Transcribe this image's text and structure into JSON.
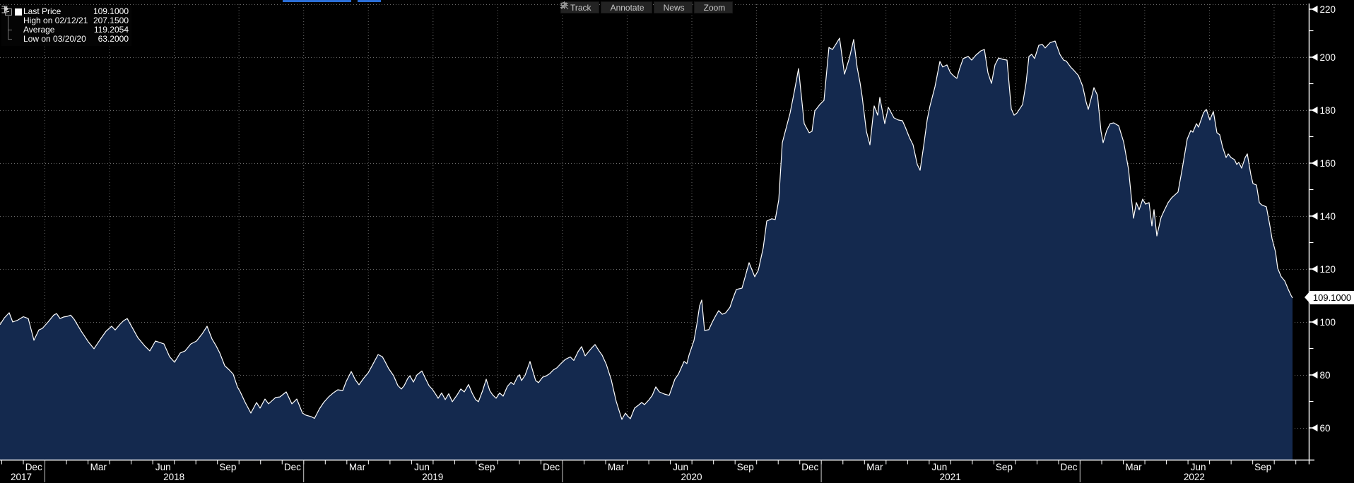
{
  "toolbar": {
    "buttons": [
      {
        "icon": "track-crosshair-icon",
        "label": "Track"
      },
      {
        "icon": "annotate-pencil-icon",
        "label": "Annotate"
      },
      {
        "icon": "news-lines-icon",
        "label": "News"
      },
      {
        "icon": "zoom-magnifier-icon",
        "label": "Zoom"
      }
    ]
  },
  "legend": {
    "rows": [
      {
        "icon": "series-swatch",
        "label": "Last Price",
        "value": "109.1000"
      },
      {
        "icon": "high-marker-icon",
        "label": "High on 02/12/21",
        "value": "207.1500"
      },
      {
        "icon": "average-marker-icon",
        "label": "Average",
        "value": "119.2054"
      },
      {
        "icon": "low-marker-icon",
        "label": "Low on 03/20/20",
        "value": "63.2000"
      }
    ]
  },
  "price_tag": {
    "value": "109.1000"
  },
  "colors": {
    "background": "#000000",
    "area_fill": "#14294e",
    "line": "#ffffff",
    "grid": "#6a6a6a",
    "year_separator": "#c8c8c8",
    "accent_blue": "#2b6fd8",
    "axis_text": "#ffffff",
    "toolbar_text": "#c6c6c6"
  },
  "chart_data": {
    "type": "area",
    "title": "",
    "xlabel": "",
    "ylabel": "",
    "x_axis": {
      "note": "weekly closes, Nov 2017 - Oct 2022; x stored as pixel offset in plot (0-1830)",
      "month_labels": [
        "Dec",
        "Mar",
        "Jun",
        "Sep",
        "Dec",
        "Mar",
        "Jun",
        "Sep",
        "Dec",
        "Mar",
        "Jun",
        "Sep",
        "Dec",
        "Mar",
        "Jun",
        "Sep",
        "Dec",
        "Mar",
        "Jun",
        "Sep"
      ],
      "year_labels": [
        "2017",
        "2018",
        "2019",
        "2020",
        "2021",
        "2022"
      ]
    },
    "y_axis": {
      "ticks": [
        220,
        200,
        180,
        160,
        140,
        120,
        100,
        80,
        60
      ],
      "range_visible": [
        60,
        220
      ],
      "grid": true
    },
    "legend_position": "top-left",
    "key_points": {
      "last": 109.1,
      "high": {
        "date": "02/12/21",
        "value": 207.15
      },
      "average": 119.2054,
      "low": {
        "date": "03/20/20",
        "value": 63.2
      }
    },
    "points": [
      [
        0,
        99
      ],
      [
        6,
        101.5
      ],
      [
        13,
        103.5
      ],
      [
        18,
        100
      ],
      [
        25,
        100.7
      ],
      [
        33,
        102
      ],
      [
        40,
        101.3
      ],
      [
        48,
        93.1
      ],
      [
        55,
        97
      ],
      [
        60,
        97.6
      ],
      [
        68,
        100
      ],
      [
        76,
        102.6
      ],
      [
        80,
        103.2
      ],
      [
        85,
        101.3
      ],
      [
        90,
        101.9
      ],
      [
        95,
        102.1
      ],
      [
        100,
        102.6
      ],
      [
        105,
        101
      ],
      [
        115,
        96.5
      ],
      [
        125,
        92.5
      ],
      [
        133,
        89.9
      ],
      [
        142,
        93.5
      ],
      [
        150,
        96.5
      ],
      [
        158,
        98.4
      ],
      [
        163,
        97
      ],
      [
        170,
        99.2
      ],
      [
        175,
        100.5
      ],
      [
        180,
        101.3
      ],
      [
        188,
        97.5
      ],
      [
        195,
        94.1
      ],
      [
        205,
        90.9
      ],
      [
        212,
        89.1
      ],
      [
        220,
        92.8
      ],
      [
        226,
        92.3
      ],
      [
        232,
        91.7
      ],
      [
        240,
        86.9
      ],
      [
        247,
        84.8
      ],
      [
        255,
        88.3
      ],
      [
        262,
        89.1
      ],
      [
        270,
        91.7
      ],
      [
        278,
        92.8
      ],
      [
        286,
        95.5
      ],
      [
        293,
        98.4
      ],
      [
        300,
        93.6
      ],
      [
        306,
        90.9
      ],
      [
        311,
        88.3
      ],
      [
        318,
        83.5
      ],
      [
        324,
        82
      ],
      [
        330,
        80.3
      ],
      [
        336,
        75.5
      ],
      [
        340,
        73.6
      ],
      [
        347,
        69.6
      ],
      [
        355,
        65.6
      ],
      [
        363,
        69.6
      ],
      [
        368,
        67.5
      ],
      [
        375,
        70.9
      ],
      [
        380,
        69.1
      ],
      [
        390,
        71.5
      ],
      [
        396,
        71.7
      ],
      [
        405,
        73.6
      ],
      [
        413,
        69.1
      ],
      [
        420,
        70.9
      ],
      [
        428,
        65.6
      ],
      [
        433,
        64.8
      ],
      [
        440,
        64.3
      ],
      [
        445,
        63.6
      ],
      [
        452,
        67.2
      ],
      [
        458,
        69.6
      ],
      [
        465,
        71.7
      ],
      [
        472,
        73.3
      ],
      [
        478,
        74.4
      ],
      [
        485,
        74.1
      ],
      [
        490,
        77.6
      ],
      [
        497,
        81.3
      ],
      [
        503,
        78.1
      ],
      [
        508,
        76.3
      ],
      [
        515,
        78.9
      ],
      [
        521,
        80.8
      ],
      [
        527,
        83.7
      ],
      [
        535,
        87.7
      ],
      [
        541,
        86.9
      ],
      [
        545,
        85
      ],
      [
        550,
        82.4
      ],
      [
        557,
        79.7
      ],
      [
        563,
        76
      ],
      [
        568,
        74.7
      ],
      [
        572,
        76
      ],
      [
        577,
        78.7
      ],
      [
        580,
        79.7
      ],
      [
        585,
        77.3
      ],
      [
        590,
        80
      ],
      [
        597,
        81.5
      ],
      [
        602,
        78.7
      ],
      [
        607,
        76
      ],
      [
        612,
        74.5
      ],
      [
        617,
        72.5
      ],
      [
        620,
        71.2
      ],
      [
        625,
        73.2
      ],
      [
        630,
        70.7
      ],
      [
        635,
        72.9
      ],
      [
        640,
        69.9
      ],
      [
        647,
        72.5
      ],
      [
        652,
        74.7
      ],
      [
        657,
        73.6
      ],
      [
        663,
        76.4
      ],
      [
        668,
        73.2
      ],
      [
        673,
        70.7
      ],
      [
        677,
        69.9
      ],
      [
        683,
        74.1
      ],
      [
        688,
        78.4
      ],
      [
        693,
        74.1
      ],
      [
        697,
        72.5
      ],
      [
        702,
        71.2
      ],
      [
        707,
        73.2
      ],
      [
        712,
        72
      ],
      [
        718,
        75.7
      ],
      [
        723,
        77.2
      ],
      [
        727,
        76.4
      ],
      [
        732,
        79.2
      ],
      [
        735,
        80.1
      ],
      [
        738,
        77.9
      ],
      [
        743,
        79.9
      ],
      [
        750,
        85.1
      ],
      [
        755,
        80.5
      ],
      [
        758,
        77.9
      ],
      [
        762,
        77.1
      ],
      [
        768,
        79.2
      ],
      [
        772,
        79.5
      ],
      [
        778,
        80.5
      ],
      [
        783,
        81.9
      ],
      [
        788,
        82.7
      ],
      [
        793,
        84.1
      ],
      [
        800,
        85.9
      ],
      [
        807,
        86.8
      ],
      [
        812,
        85.5
      ],
      [
        818,
        88.8
      ],
      [
        823,
        90.7
      ],
      [
        828,
        87.2
      ],
      [
        837,
        90.1
      ],
      [
        842,
        91.5
      ],
      [
        848,
        89
      ],
      [
        852,
        87.5
      ],
      [
        858,
        84
      ],
      [
        865,
        78.1
      ],
      [
        872,
        70
      ],
      [
        880,
        63.2
      ],
      [
        885,
        65.6
      ],
      [
        888,
        64.5
      ],
      [
        892,
        63.5
      ],
      [
        898,
        67.5
      ],
      [
        903,
        68.5
      ],
      [
        908,
        69.6
      ],
      [
        912,
        68.8
      ],
      [
        918,
        70.5
      ],
      [
        923,
        72.3
      ],
      [
        928,
        75.5
      ],
      [
        933,
        73.6
      ],
      [
        940,
        72.8
      ],
      [
        947,
        72.3
      ],
      [
        955,
        78.4
      ],
      [
        960,
        80.3
      ],
      [
        968,
        85.1
      ],
      [
        972,
        84.3
      ],
      [
        975,
        87.5
      ],
      [
        982,
        93
      ],
      [
        986,
        99
      ],
      [
        990,
        106.1
      ],
      [
        993,
        108.3
      ],
      [
        997,
        96.8
      ],
      [
        1003,
        97.1
      ],
      [
        1008,
        100
      ],
      [
        1013,
        102.5
      ],
      [
        1017,
        104.3
      ],
      [
        1022,
        102.9
      ],
      [
        1027,
        103.5
      ],
      [
        1033,
        105.6
      ],
      [
        1037,
        108.8
      ],
      [
        1042,
        112.3
      ],
      [
        1050,
        112.8
      ],
      [
        1060,
        122.4
      ],
      [
        1068,
        117.1
      ],
      [
        1073,
        119.5
      ],
      [
        1080,
        128
      ],
      [
        1085,
        138.1
      ],
      [
        1092,
        139
      ],
      [
        1097,
        138.7
      ],
      [
        1102,
        146.1
      ],
      [
        1107,
        167.7
      ],
      [
        1112,
        172.8
      ],
      [
        1118,
        178.9
      ],
      [
        1124,
        187
      ],
      [
        1130,
        195.7
      ],
      [
        1138,
        174.9
      ],
      [
        1145,
        171.5
      ],
      [
        1149,
        172
      ],
      [
        1153,
        179.7
      ],
      [
        1160,
        182.1
      ],
      [
        1166,
        183.7
      ],
      [
        1173,
        203.7
      ],
      [
        1178,
        202.9
      ],
      [
        1183,
        205
      ],
      [
        1188,
        207.2
      ],
      [
        1195,
        193.6
      ],
      [
        1202,
        199.7
      ],
      [
        1208,
        206.7
      ],
      [
        1213,
        196
      ],
      [
        1217,
        190.4
      ],
      [
        1220,
        185.1
      ],
      [
        1226,
        172
      ],
      [
        1231,
        166.9
      ],
      [
        1237,
        181.6
      ],
      [
        1242,
        178.1
      ],
      [
        1245,
        184.8
      ],
      [
        1252,
        174.9
      ],
      [
        1257,
        181.1
      ],
      [
        1265,
        177.1
      ],
      [
        1271,
        176.3
      ],
      [
        1277,
        176
      ],
      [
        1281,
        173.6
      ],
      [
        1287,
        169.6
      ],
      [
        1292,
        166.9
      ],
      [
        1298,
        159.5
      ],
      [
        1302,
        157.3
      ],
      [
        1307,
        166.4
      ],
      [
        1312,
        176.3
      ],
      [
        1316,
        181.6
      ],
      [
        1323,
        188.8
      ],
      [
        1330,
        198.4
      ],
      [
        1334,
        196.3
      ],
      [
        1340,
        197.1
      ],
      [
        1345,
        194.1
      ],
      [
        1350,
        192.8
      ],
      [
        1354,
        192
      ],
      [
        1358,
        195.7
      ],
      [
        1363,
        199.5
      ],
      [
        1370,
        200.3
      ],
      [
        1375,
        198.9
      ],
      [
        1381,
        200.8
      ],
      [
        1388,
        202.4
      ],
      [
        1393,
        202.9
      ],
      [
        1398,
        194.1
      ],
      [
        1403,
        190.1
      ],
      [
        1408,
        197.1
      ],
      [
        1413,
        199.7
      ],
      [
        1419,
        199.2
      ],
      [
        1425,
        198.9
      ],
      [
        1431,
        180.5
      ],
      [
        1435,
        178.1
      ],
      [
        1439,
        178.9
      ],
      [
        1447,
        182.1
      ],
      [
        1452,
        190.4
      ],
      [
        1456,
        200.3
      ],
      [
        1460,
        201.1
      ],
      [
        1464,
        199.5
      ],
      [
        1470,
        204.5
      ],
      [
        1475,
        204.8
      ],
      [
        1479,
        203.5
      ],
      [
        1486,
        205.5
      ],
      [
        1493,
        206.1
      ],
      [
        1500,
        201
      ],
      [
        1505,
        198.9
      ],
      [
        1509,
        198.5
      ],
      [
        1515,
        196.3
      ],
      [
        1520,
        194.9
      ],
      [
        1526,
        193.1
      ],
      [
        1532,
        189.1
      ],
      [
        1537,
        183
      ],
      [
        1540,
        180.3
      ],
      [
        1548,
        188.5
      ],
      [
        1553,
        185.6
      ],
      [
        1558,
        172
      ],
      [
        1561,
        167.7
      ],
      [
        1566,
        172.3
      ],
      [
        1571,
        174.9
      ],
      [
        1576,
        175.2
      ],
      [
        1583,
        174.1
      ],
      [
        1590,
        168
      ],
      [
        1597,
        157.6
      ],
      [
        1601,
        146.9
      ],
      [
        1604,
        139.2
      ],
      [
        1608,
        145.1
      ],
      [
        1612,
        142.4
      ],
      [
        1617,
        146.4
      ],
      [
        1621,
        144.5
      ],
      [
        1626,
        145.1
      ],
      [
        1630,
        136.3
      ],
      [
        1633,
        142.4
      ],
      [
        1637,
        132.5
      ],
      [
        1643,
        139.5
      ],
      [
        1648,
        142.4
      ],
      [
        1653,
        145.1
      ],
      [
        1658,
        146.9
      ],
      [
        1667,
        149.1
      ],
      [
        1673,
        158
      ],
      [
        1680,
        169.1
      ],
      [
        1685,
        172.3
      ],
      [
        1688,
        171.7
      ],
      [
        1693,
        174.9
      ],
      [
        1696,
        173.6
      ],
      [
        1703,
        179
      ],
      [
        1707,
        180.3
      ],
      [
        1712,
        176.3
      ],
      [
        1717,
        179.5
      ],
      [
        1722,
        171.5
      ],
      [
        1726,
        170.7
      ],
      [
        1730,
        166.1
      ],
      [
        1735,
        162.1
      ],
      [
        1738,
        163.5
      ],
      [
        1742,
        162.1
      ],
      [
        1747,
        161.3
      ],
      [
        1750,
        159.5
      ],
      [
        1753,
        160.3
      ],
      [
        1757,
        158.1
      ],
      [
        1762,
        162.1
      ],
      [
        1765,
        163.5
      ],
      [
        1770,
        155.7
      ],
      [
        1773,
        152.3
      ],
      [
        1778,
        151.7
      ],
      [
        1782,
        145.1
      ],
      [
        1785,
        144.3
      ],
      [
        1792,
        143.5
      ],
      [
        1797,
        136.3
      ],
      [
        1800,
        131.5
      ],
      [
        1805,
        126.4
      ],
      [
        1808,
        120.3
      ],
      [
        1813,
        117.1
      ],
      [
        1818,
        115.5
      ],
      [
        1823,
        112.3
      ],
      [
        1827,
        110
      ],
      [
        1829,
        109.1
      ]
    ]
  }
}
